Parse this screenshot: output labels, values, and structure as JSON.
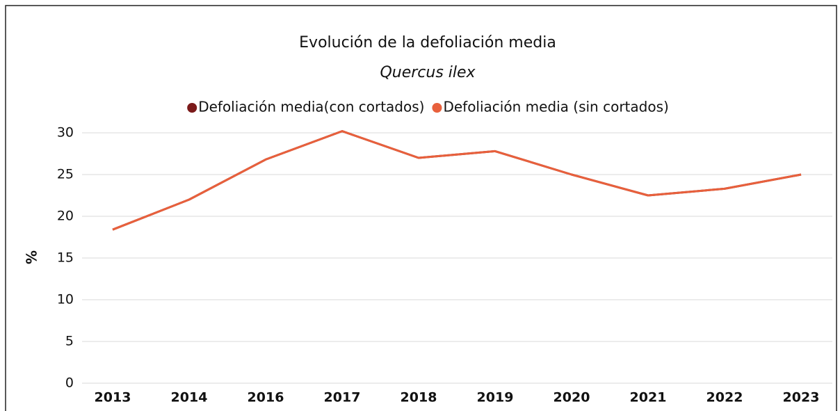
{
  "chart_data": {
    "type": "line",
    "title": "Evolución de la defoliación media",
    "subtitle": "Quercus ilex",
    "y_label": "%",
    "categories": [
      "2013",
      "2014",
      "2016",
      "2017",
      "2018",
      "2019",
      "2020",
      "2021",
      "2022",
      "2023"
    ],
    "series": [
      {
        "name": "Defoliación media(con cortados)",
        "color": "#7b1a1a",
        "values": [
          18.4,
          22,
          26.8,
          30.2,
          27,
          27.8,
          25,
          22.5,
          23.3,
          25
        ]
      },
      {
        "name": "Defoliación media (sin cortados)",
        "color": "#e8603c",
        "values": [
          18.4,
          22,
          26.8,
          30.2,
          27,
          27.8,
          25,
          22.5,
          23.3,
          25
        ]
      }
    ],
    "ylim": [
      0,
      30
    ],
    "yticks": [
      0,
      5,
      10,
      15,
      20,
      25,
      30
    ],
    "grid": true
  }
}
